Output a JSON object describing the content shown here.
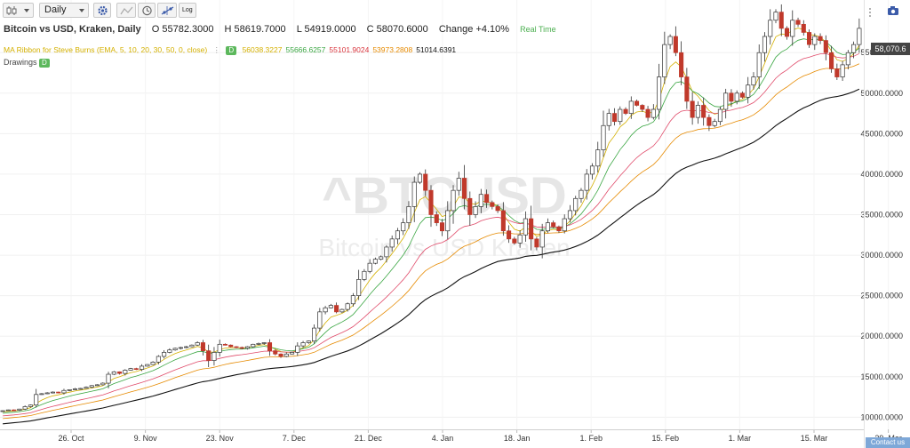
{
  "toolbar": {
    "interval_value": "Daily",
    "log_label": "Log"
  },
  "header": {
    "title": "Bitcoin vs USD, Kraken, Daily",
    "open": "O 55782.3000",
    "high": "H 58619.7000",
    "low": "L 54919.0000",
    "close": "C 58070.6000",
    "change": "Change +4.10%",
    "realtime": "Real Time"
  },
  "indicator": {
    "name": "MA Ribbon for Steve Burns (EMA, 5, 10, 20, 30, 50, 0, close)",
    "badge": "D",
    "values": [
      {
        "v": "56038.3227",
        "color": "#d4b000"
      },
      {
        "v": "55666.6257",
        "color": "#3aa642"
      },
      {
        "v": "55101.9024",
        "color": "#d9363e"
      },
      {
        "v": "53973.2808",
        "color": "#e68a00"
      },
      {
        "v": "51014.6391",
        "color": "#111111"
      }
    ]
  },
  "drawings": {
    "label": "Drawings",
    "badge": "D"
  },
  "watermark": {
    "symbol": "^BTCUSD",
    "name": "Bitcoin vs USD Kraken"
  },
  "last_price": "58,070.6",
  "contact": "Contact us",
  "chart_data": {
    "type": "candlestick",
    "x_ticks": [
      "26. Oct",
      "9. Nov",
      "23. Nov",
      "7. Dec",
      "21. Dec",
      "4. Jan",
      "18. Jan",
      "1. Feb",
      "15. Feb",
      "1. Mar",
      "15. Mar",
      "29. Mar"
    ],
    "y_ticks": [
      10000,
      15000,
      20000,
      25000,
      30000,
      35000,
      40000,
      45000,
      50000,
      55000
    ],
    "y_range": [
      8500,
      61500
    ],
    "colors": {
      "up": "#ffffff",
      "down": "#c0392b",
      "ema5": "#d4b000",
      "ema10": "#3aa642",
      "ema20": "#e04b6a",
      "ema30": "#e68a00",
      "ema50": "#111111"
    },
    "closes": [
      10800,
      10900,
      10850,
      11000,
      11300,
      11500,
      12800,
      12900,
      13000,
      13100,
      13000,
      13300,
      13400,
      13500,
      13550,
      13700,
      13900,
      14000,
      14200,
      15300,
      15600,
      15400,
      15800,
      16000,
      15900,
      16300,
      16500,
      16800,
      17500,
      18000,
      18300,
      18500,
      18600,
      18700,
      18900,
      19200,
      18200,
      17000,
      18000,
      19000,
      18900,
      18700,
      18600,
      18500,
      18700,
      19000,
      19100,
      19200,
      18200,
      17800,
      17500,
      17800,
      18000,
      18800,
      19200,
      19400,
      21000,
      23000,
      23500,
      23800,
      23000,
      23300,
      24000,
      25000,
      27000,
      28000,
      29000,
      29500,
      29800,
      31000,
      32000,
      33000,
      34000,
      36000,
      39000,
      40000,
      38000,
      35000,
      34000,
      33000,
      35500,
      38000,
      39500,
      37000,
      35000,
      36000,
      37500,
      36500,
      36000,
      35500,
      33000,
      32000,
      31500,
      32500,
      34500,
      32000,
      31000,
      33000,
      34000,
      33500,
      33000,
      34500,
      35500,
      37000,
      38000,
      40000,
      41000,
      43000,
      46000,
      47500,
      46500,
      48000,
      47500,
      49000,
      48500,
      48000,
      47000,
      48000,
      52000,
      56000,
      57000,
      55000,
      52000,
      49000,
      47000,
      48500,
      47000,
      46000,
      46500,
      48000,
      50000,
      49000,
      50000,
      49500,
      51000,
      52000,
      55000,
      57000,
      59000,
      60000,
      58000,
      57000,
      59000,
      58500,
      57500,
      56000,
      57000,
      56500,
      55000,
      53000,
      52000,
      53500,
      55000,
      56000,
      58000
    ]
  }
}
